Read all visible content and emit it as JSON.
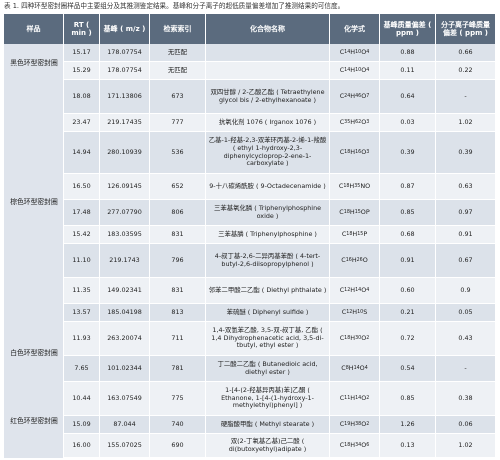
{
  "caption": "表 1. 四种环型密封圈样品中主要组分及其推测鉴定结果。基峰和分子离子的超低质量偏差增加了推测结果的可信度。",
  "headers": {
    "sample": "样品",
    "rt": "RT ( min )",
    "base_peak": "基峰 ( m/z )",
    "search_index": "检索索引",
    "compound": "化合物名称",
    "formula": "化学式",
    "base_err": "基峰质量偏差 ( ppm )",
    "mol_err": "分子离子峰质量偏差 ( ppm )"
  },
  "categories": [
    {
      "label": "黑色环型密封圈"
    },
    {
      "label": "棕色环型密封圈"
    },
    {
      "label": "白色环型密封圈"
    },
    {
      "label": "红色环型密封圈"
    }
  ],
  "rows": [
    {
      "rt": "15.17",
      "mz": "178.07754",
      "idx": "无匹配",
      "name": "",
      "formula": "C14H10O4",
      "e1": "0.88",
      "e2": "0.66"
    },
    {
      "rt": "15.29",
      "mz": "178.07754",
      "idx": "无匹配",
      "name": "",
      "formula": "C14H10O4",
      "e1": "0.11",
      "e2": "0.22"
    },
    {
      "rt": "18.08",
      "mz": "171.13806",
      "idx": "673",
      "name": "双四甘醇 / 2-乙酸乙酯 ( Tetraethylene glycol bis / 2-ethylhexanoate )",
      "formula": "C24H46O7",
      "e1": "0.64",
      "e2": "-"
    },
    {
      "rt": "23.47",
      "mz": "219.17435",
      "idx": "777",
      "name": "抗氧化剂 1076 ( Irganox 1076 )",
      "formula": "C35H62O3",
      "e1": "0.03",
      "e2": "1.02"
    },
    {
      "rt": "14.94",
      "mz": "280.10939",
      "idx": "536",
      "name": "乙基-1-羟基-2,3-双苯环丙基-2-烯-1-羧酸 ( ethyl 1-hydroxy-2,3-diphenylcycloprop-2-ene-1-carboxylate )",
      "formula": "C18H16O3",
      "e1": "0.39",
      "e2": "0.39"
    },
    {
      "rt": "16.50",
      "mz": "126.09145",
      "idx": "652",
      "name": "9-十八碳烯酰胺 ( 9-Octadecenamide )",
      "formula": "C18H35NO",
      "e1": "0.87",
      "e2": "0.63"
    },
    {
      "rt": "17.48",
      "mz": "277.07790",
      "idx": "806",
      "name": "三苯基氧化膦 ( Triphenylphosphine oxide )",
      "formula": "C18H15OP",
      "e1": "0.85",
      "e2": "0.97"
    },
    {
      "rt": "15.42",
      "mz": "183.03595",
      "idx": "831",
      "name": "三苯基膦 ( Triphenylphosphine )",
      "formula": "C18H15P",
      "e1": "0.68",
      "e2": "0.91"
    },
    {
      "rt": "11.10",
      "mz": "219.1743",
      "idx": "796",
      "name": "4-叔丁基-2,6-二异丙基苯酚 ( 4-tert-butyl-2,6-diisopropylphenol )",
      "formula": "C16H26O",
      "e1": "0.91",
      "e2": "0.67"
    },
    {
      "rt": "11.35",
      "mz": "149.02341",
      "idx": "831",
      "name": "邻苯二甲酸二乙酯 ( Diethyl phthalate )",
      "formula": "C12H14O4",
      "e1": "0.60",
      "e2": "0.9"
    },
    {
      "rt": "13.57",
      "mz": "185.04198",
      "idx": "813",
      "name": "苯硫醚 ( Diphenyl sulfide )",
      "formula": "C12H10S",
      "e1": "0.21",
      "e2": "0.05"
    },
    {
      "rt": "11.93",
      "mz": "263.20074",
      "idx": "711",
      "name": "1,4-双氢苯乙酸, 3,5-双-叔丁基, 乙酯 ( 1,4 Dihydrophenacetic acid, 3,5-di-tbutyl, ethyl ester )",
      "formula": "C18H30O2",
      "e1": "0.72",
      "e2": "0.43"
    },
    {
      "rt": "7.65",
      "mz": "101.02344",
      "idx": "781",
      "name": "丁二酸二乙酯 ( Butanedioic acid, diethyl ester )",
      "formula": "C8H14O4",
      "e1": "0.54",
      "e2": "-"
    },
    {
      "rt": "10.44",
      "mz": "163.07549",
      "idx": "775",
      "name": "1-[4-(2-羟基异丙基)苯]乙酮 ( Ethanone, 1-[4-(1-hydroxy-1-methylethyl)phenyl] )",
      "formula": "C11H14O2",
      "e1": "0.85",
      "e2": "0.38"
    },
    {
      "rt": "15.09",
      "mz": "87.044",
      "idx": "740",
      "name": "硬脂酸甲酯 ( Methyl stearate )",
      "formula": "C19H38O2",
      "e1": "1.26",
      "e2": "0.06"
    },
    {
      "rt": "16.00",
      "mz": "155.07025",
      "idx": "690",
      "name": "双(2-丁氧基乙基)己二酸 ( di(butoxyethyl)adipate )",
      "formula": "C18H34O6",
      "e1": "0.13",
      "e2": "1.02"
    }
  ]
}
